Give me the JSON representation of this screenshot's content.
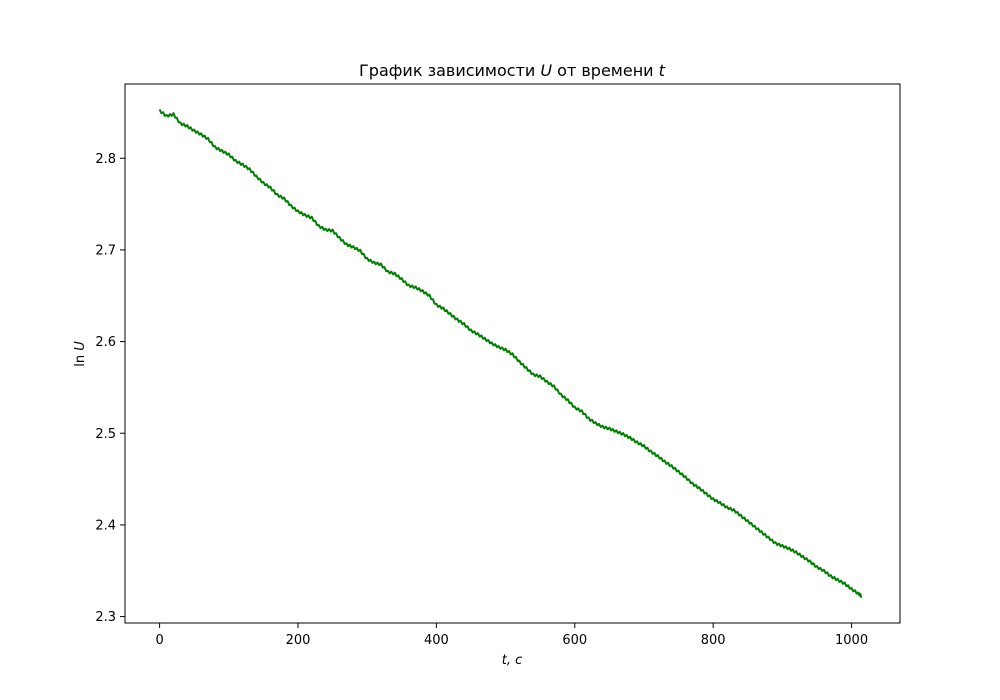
{
  "chart_data": {
    "type": "line",
    "title_main": "График зависимости ",
    "title_var": "U",
    "title_mid": " от времени ",
    "title_var2": "t",
    "xlabel": "t, c",
    "ylabel_fn": "ln ",
    "ylabel_var": "U",
    "xlim": [
      -50,
      1070
    ],
    "ylim": [
      2.293,
      2.881
    ],
    "x_ticks": [
      0,
      200,
      400,
      600,
      800,
      1000
    ],
    "y_ticks": [
      2.3,
      2.4,
      2.5,
      2.6,
      2.7,
      2.8
    ],
    "x_tick_labels": [
      "0",
      "200",
      "400",
      "600",
      "800",
      "1000"
    ],
    "y_tick_labels": [
      "2.3",
      "2.4",
      "2.5",
      "2.6",
      "2.7",
      "2.8"
    ],
    "series": [
      {
        "name": "ln U",
        "color": "#008000",
        "x": [
          0,
          10,
          20,
          30,
          40,
          50,
          60,
          70,
          80,
          90,
          100,
          110,
          120,
          130,
          140,
          150,
          160,
          170,
          180,
          190,
          200,
          210,
          220,
          230,
          240,
          250,
          260,
          270,
          280,
          290,
          300,
          310,
          320,
          330,
          340,
          350,
          360,
          370,
          380,
          390,
          400,
          410,
          420,
          430,
          440,
          450,
          460,
          470,
          480,
          490,
          500,
          510,
          520,
          530,
          540,
          550,
          560,
          570,
          580,
          590,
          600,
          610,
          620,
          630,
          640,
          650,
          660,
          670,
          680,
          690,
          700,
          710,
          720,
          730,
          740,
          750,
          760,
          770,
          780,
          790,
          800,
          810,
          820,
          830,
          840,
          850,
          860,
          870,
          880,
          890,
          900,
          910,
          920,
          930,
          940,
          950,
          960,
          970,
          980,
          990,
          1000,
          1010,
          1015
        ],
        "values": [
          2.852,
          2.846,
          2.848,
          2.838,
          2.835,
          2.83,
          2.826,
          2.821,
          2.812,
          2.808,
          2.804,
          2.797,
          2.793,
          2.788,
          2.78,
          2.773,
          2.768,
          2.76,
          2.756,
          2.748,
          2.742,
          2.738,
          2.735,
          2.726,
          2.722,
          2.721,
          2.713,
          2.706,
          2.703,
          2.699,
          2.69,
          2.686,
          2.684,
          2.676,
          2.674,
          2.668,
          2.661,
          2.659,
          2.655,
          2.65,
          2.64,
          2.636,
          2.63,
          2.624,
          2.619,
          2.612,
          2.608,
          2.603,
          2.598,
          2.594,
          2.591,
          2.586,
          2.578,
          2.571,
          2.564,
          2.562,
          2.556,
          2.551,
          2.542,
          2.536,
          2.528,
          2.524,
          2.516,
          2.511,
          2.507,
          2.505,
          2.502,
          2.499,
          2.495,
          2.49,
          2.486,
          2.48,
          2.475,
          2.469,
          2.464,
          2.458,
          2.452,
          2.445,
          2.44,
          2.434,
          2.428,
          2.424,
          2.419,
          2.416,
          2.41,
          2.404,
          2.398,
          2.392,
          2.386,
          2.38,
          2.377,
          2.374,
          2.37,
          2.365,
          2.36,
          2.354,
          2.35,
          2.344,
          2.34,
          2.336,
          2.33,
          2.325,
          2.322
        ]
      }
    ]
  }
}
